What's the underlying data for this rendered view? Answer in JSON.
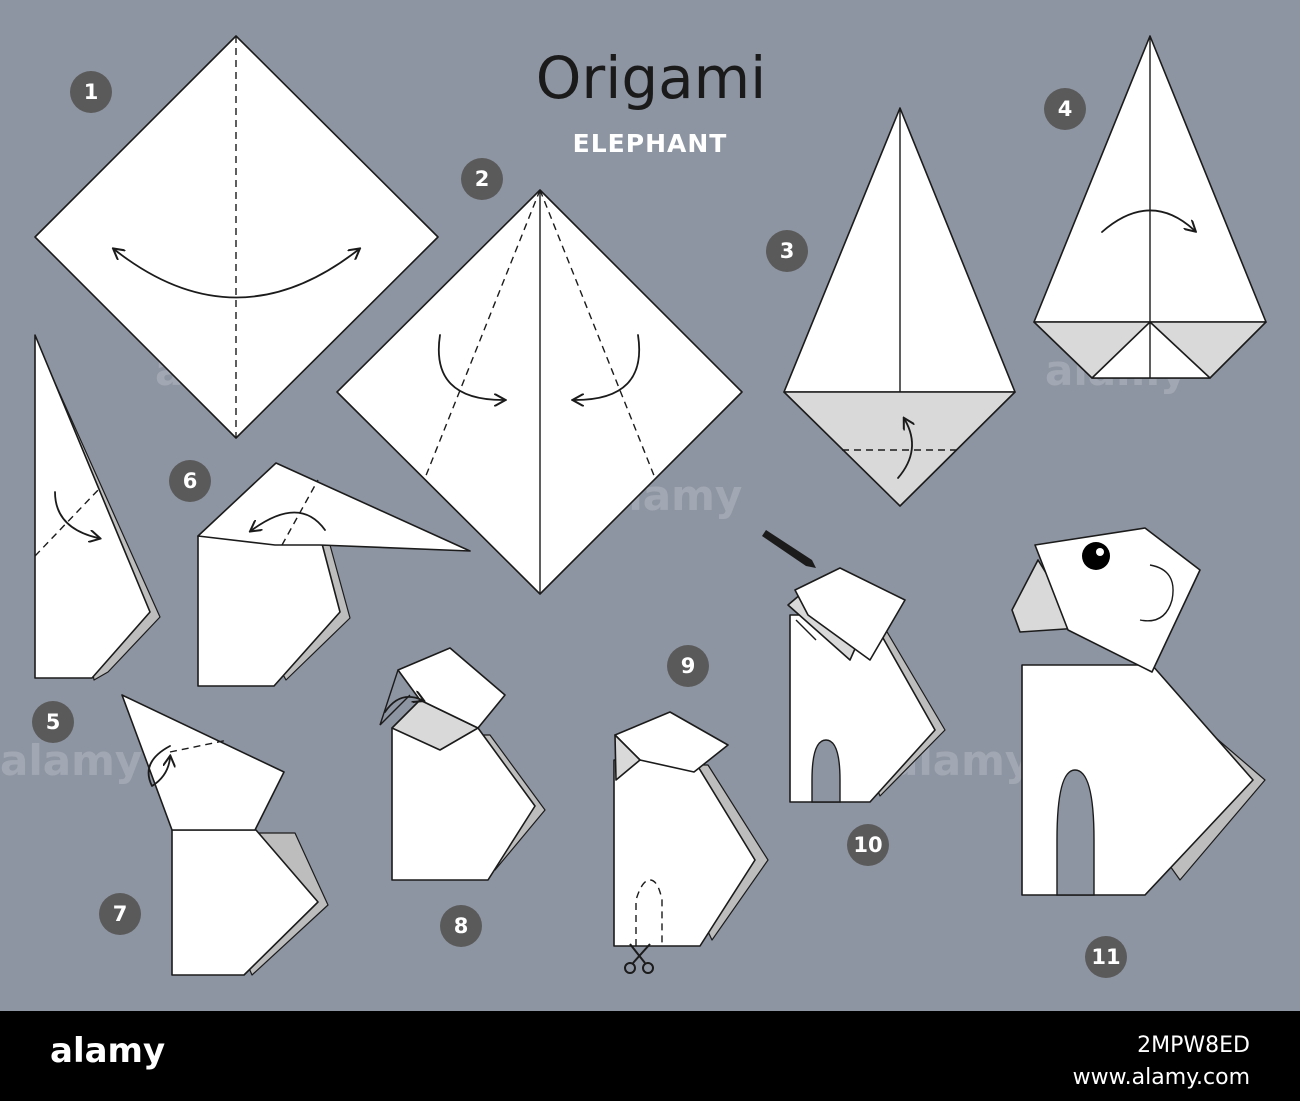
{
  "header": {
    "title": "Origami",
    "subtitle": "ELEPHANT"
  },
  "steps": [
    {
      "number": "1"
    },
    {
      "number": "2"
    },
    {
      "number": "3"
    },
    {
      "number": "4"
    },
    {
      "number": "5"
    },
    {
      "number": "6"
    },
    {
      "number": "7"
    },
    {
      "number": "8"
    },
    {
      "number": "9"
    },
    {
      "number": "10"
    },
    {
      "number": "11"
    }
  ],
  "icons": {
    "fold": "fold-arrow-icon",
    "pencil": "pencil-icon",
    "scissors": "scissors-icon"
  },
  "watermark": {
    "text": "alamy"
  },
  "footer": {
    "logo": "alamy",
    "image_id": "2MPW8ED",
    "url": "www.alamy.com"
  },
  "colors": {
    "background": "#8e95a2",
    "paper": "#ffffff",
    "paper_shade": "#d9d9d9",
    "badge": "#5a5a5a",
    "footer": "#000000"
  }
}
